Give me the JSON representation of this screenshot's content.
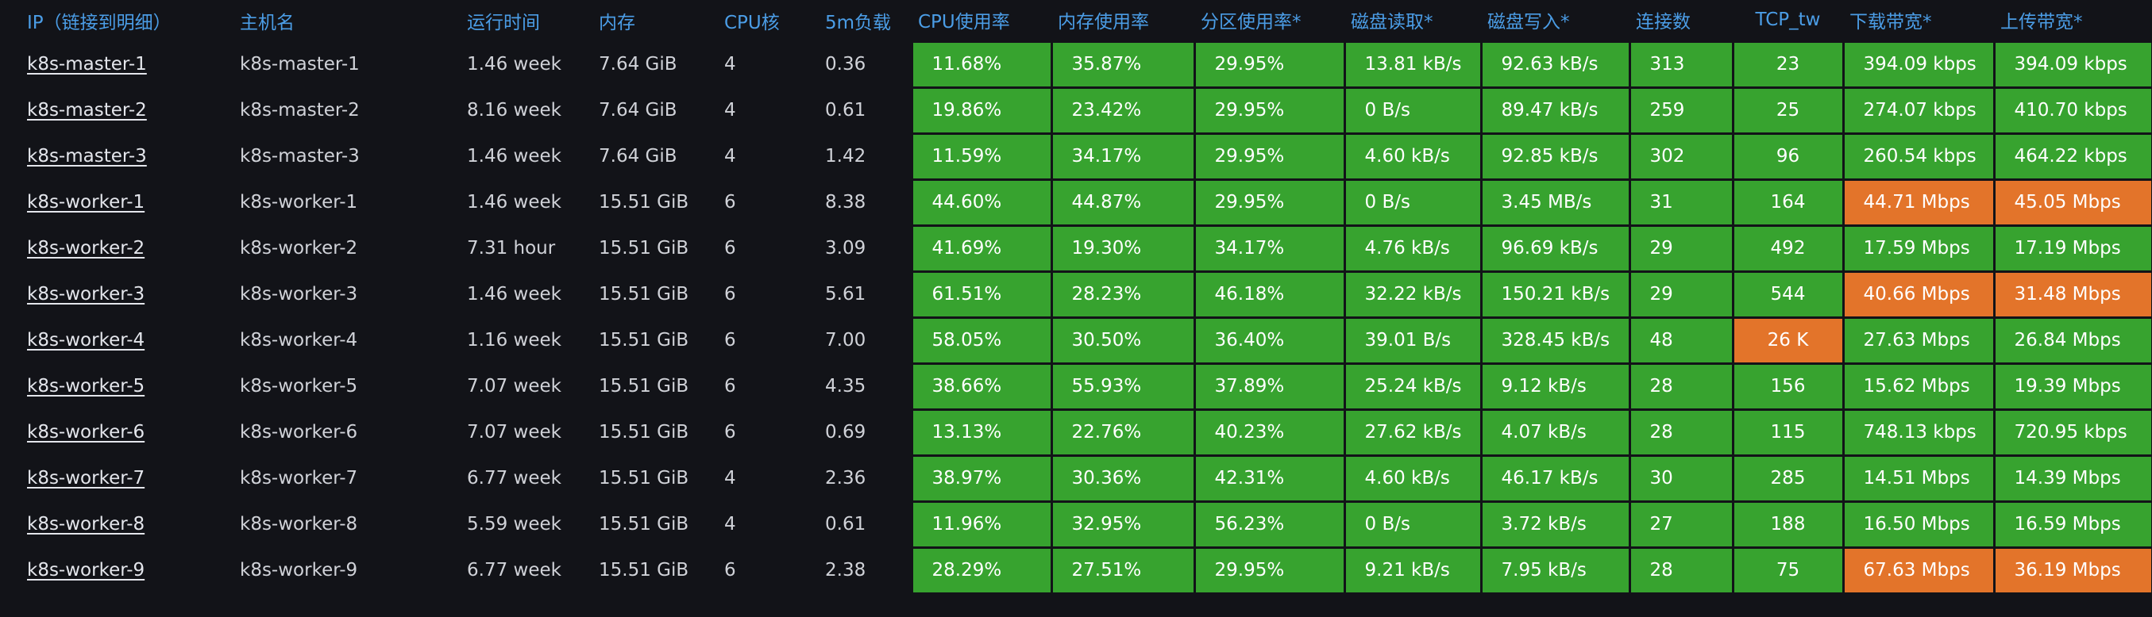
{
  "colors": {
    "background": "#121318",
    "header_text": "#4b9de6",
    "ok": "#37a32f",
    "warn": "#e3742a"
  },
  "columns": [
    "IP（链接到明细）",
    "主机名",
    "运行时间",
    "内存",
    "CPU核",
    "5m负载",
    "CPU使用率",
    "内存使用率",
    "分区使用率*",
    "磁盘读取*",
    "磁盘写入*",
    "连接数",
    "TCP_tw",
    "下载带宽*",
    "上传带宽*"
  ],
  "rows": [
    {
      "ip": "k8s-master-1",
      "host": "k8s-master-1",
      "uptime": "1.46 week",
      "mem": "7.64 GiB",
      "cpu": "4",
      "load": "0.36",
      "cpu_use": "11.68%",
      "mem_use": "35.87%",
      "part_use": "29.95%",
      "disk_read": "13.81 kB/s",
      "disk_write": "92.63 kB/s",
      "conn": "313",
      "tcp_tw": "23",
      "down": "394.09 kbps",
      "up": "394.09 kbps",
      "status": {
        "tcp_tw": "ok",
        "down": "ok",
        "up": "ok"
      }
    },
    {
      "ip": "k8s-master-2",
      "host": "k8s-master-2",
      "uptime": "8.16 week",
      "mem": "7.64 GiB",
      "cpu": "4",
      "load": "0.61",
      "cpu_use": "19.86%",
      "mem_use": "23.42%",
      "part_use": "29.95%",
      "disk_read": "0 B/s",
      "disk_write": "89.47 kB/s",
      "conn": "259",
      "tcp_tw": "25",
      "down": "274.07 kbps",
      "up": "410.70 kbps",
      "status": {
        "tcp_tw": "ok",
        "down": "ok",
        "up": "ok"
      }
    },
    {
      "ip": "k8s-master-3",
      "host": "k8s-master-3",
      "uptime": "1.46 week",
      "mem": "7.64 GiB",
      "cpu": "4",
      "load": "1.42",
      "cpu_use": "11.59%",
      "mem_use": "34.17%",
      "part_use": "29.95%",
      "disk_read": "4.60 kB/s",
      "disk_write": "92.85 kB/s",
      "conn": "302",
      "tcp_tw": "96",
      "down": "260.54 kbps",
      "up": "464.22 kbps",
      "status": {
        "tcp_tw": "ok",
        "down": "ok",
        "up": "ok"
      }
    },
    {
      "ip": "k8s-worker-1",
      "host": "k8s-worker-1",
      "uptime": "1.46 week",
      "mem": "15.51 GiB",
      "cpu": "6",
      "load": "8.38",
      "cpu_use": "44.60%",
      "mem_use": "44.87%",
      "part_use": "29.95%",
      "disk_read": "0 B/s",
      "disk_write": "3.45 MB/s",
      "conn": "31",
      "tcp_tw": "164",
      "down": "44.71 Mbps",
      "up": "45.05 Mbps",
      "status": {
        "tcp_tw": "ok",
        "down": "warn",
        "up": "warn"
      }
    },
    {
      "ip": "k8s-worker-2",
      "host": "k8s-worker-2",
      "uptime": "7.31 hour",
      "mem": "15.51 GiB",
      "cpu": "6",
      "load": "3.09",
      "cpu_use": "41.69%",
      "mem_use": "19.30%",
      "part_use": "34.17%",
      "disk_read": "4.76 kB/s",
      "disk_write": "96.69 kB/s",
      "conn": "29",
      "tcp_tw": "492",
      "down": "17.59 Mbps",
      "up": "17.19 Mbps",
      "status": {
        "tcp_tw": "ok",
        "down": "ok",
        "up": "ok"
      }
    },
    {
      "ip": "k8s-worker-3",
      "host": "k8s-worker-3",
      "uptime": "1.46 week",
      "mem": "15.51 GiB",
      "cpu": "6",
      "load": "5.61",
      "cpu_use": "61.51%",
      "mem_use": "28.23%",
      "part_use": "46.18%",
      "disk_read": "32.22 kB/s",
      "disk_write": "150.21 kB/s",
      "conn": "29",
      "tcp_tw": "544",
      "down": "40.66 Mbps",
      "up": "31.48 Mbps",
      "status": {
        "tcp_tw": "ok",
        "down": "warn",
        "up": "warn"
      }
    },
    {
      "ip": "k8s-worker-4",
      "host": "k8s-worker-4",
      "uptime": "1.16 week",
      "mem": "15.51 GiB",
      "cpu": "6",
      "load": "7.00",
      "cpu_use": "58.05%",
      "mem_use": "30.50%",
      "part_use": "36.40%",
      "disk_read": "39.01 B/s",
      "disk_write": "328.45 kB/s",
      "conn": "48",
      "tcp_tw": "26 K",
      "down": "27.63 Mbps",
      "up": "26.84 Mbps",
      "status": {
        "tcp_tw": "warn",
        "down": "ok",
        "up": "ok"
      }
    },
    {
      "ip": "k8s-worker-5",
      "host": "k8s-worker-5",
      "uptime": "7.07 week",
      "mem": "15.51 GiB",
      "cpu": "6",
      "load": "4.35",
      "cpu_use": "38.66%",
      "mem_use": "55.93%",
      "part_use": "37.89%",
      "disk_read": "25.24 kB/s",
      "disk_write": "9.12 kB/s",
      "conn": "28",
      "tcp_tw": "156",
      "down": "15.62 Mbps",
      "up": "19.39 Mbps",
      "status": {
        "tcp_tw": "ok",
        "down": "ok",
        "up": "ok"
      }
    },
    {
      "ip": "k8s-worker-6",
      "host": "k8s-worker-6",
      "uptime": "7.07 week",
      "mem": "15.51 GiB",
      "cpu": "6",
      "load": "0.69",
      "cpu_use": "13.13%",
      "mem_use": "22.76%",
      "part_use": "40.23%",
      "disk_read": "27.62 kB/s",
      "disk_write": "4.07 kB/s",
      "conn": "28",
      "tcp_tw": "115",
      "down": "748.13 kbps",
      "up": "720.95 kbps",
      "status": {
        "tcp_tw": "ok",
        "down": "ok",
        "up": "ok"
      }
    },
    {
      "ip": "k8s-worker-7",
      "host": "k8s-worker-7",
      "uptime": "6.77 week",
      "mem": "15.51 GiB",
      "cpu": "4",
      "load": "2.36",
      "cpu_use": "38.97%",
      "mem_use": "30.36%",
      "part_use": "42.31%",
      "disk_read": "4.60 kB/s",
      "disk_write": "46.17 kB/s",
      "conn": "30",
      "tcp_tw": "285",
      "down": "14.51 Mbps",
      "up": "14.39 Mbps",
      "status": {
        "tcp_tw": "ok",
        "down": "ok",
        "up": "ok"
      }
    },
    {
      "ip": "k8s-worker-8",
      "host": "k8s-worker-8",
      "uptime": "5.59 week",
      "mem": "15.51 GiB",
      "cpu": "4",
      "load": "0.61",
      "cpu_use": "11.96%",
      "mem_use": "32.95%",
      "part_use": "56.23%",
      "disk_read": "0 B/s",
      "disk_write": "3.72 kB/s",
      "conn": "27",
      "tcp_tw": "188",
      "down": "16.50 Mbps",
      "up": "16.59 Mbps",
      "status": {
        "tcp_tw": "ok",
        "down": "ok",
        "up": "ok"
      }
    },
    {
      "ip": "k8s-worker-9",
      "host": "k8s-worker-9",
      "uptime": "6.77 week",
      "mem": "15.51 GiB",
      "cpu": "6",
      "load": "2.38",
      "cpu_use": "28.29%",
      "mem_use": "27.51%",
      "part_use": "29.95%",
      "disk_read": "9.21 kB/s",
      "disk_write": "7.95 kB/s",
      "conn": "28",
      "tcp_tw": "75",
      "down": "67.63 Mbps",
      "up": "36.19 Mbps",
      "status": {
        "tcp_tw": "ok",
        "down": "warn",
        "up": "warn"
      }
    }
  ]
}
